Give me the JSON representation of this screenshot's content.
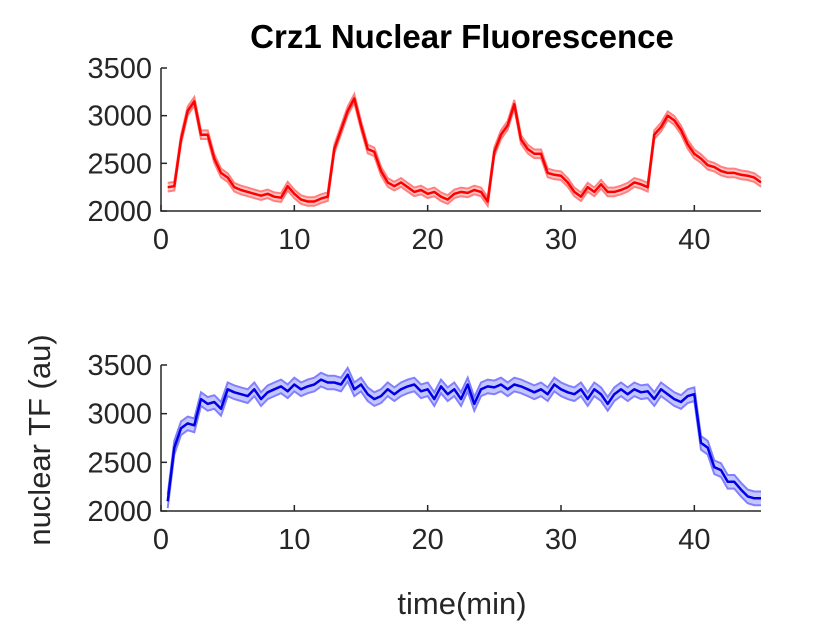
{
  "figure": {
    "title": "Crz1 Nuclear Fluorescence",
    "xlabel": "time(min)",
    "ylabel": "nuclear TF (au)"
  },
  "chart_data": [
    {
      "type": "line",
      "title": "Crz1 Nuclear Fluorescence",
      "xlabel": "",
      "ylabel": "",
      "xlim": [
        0,
        45
      ],
      "ylim": [
        2000,
        3500
      ],
      "xticks": [
        "0",
        "10",
        "20",
        "30",
        "40"
      ],
      "yticks": [
        "2000",
        "2500",
        "3000",
        "3500"
      ],
      "grid": false,
      "color": "#ff0000",
      "band_color": "#ff8080",
      "band_halfwidth": 45,
      "series": [
        {
          "x": [
            0.5,
            1.0,
            1.5,
            2.0,
            2.5,
            3.0,
            3.5,
            4.0,
            4.5,
            5.0,
            5.5,
            6.0,
            6.5,
            7.0,
            7.5,
            8.0,
            8.5,
            9.0,
            9.5,
            10.0,
            10.5,
            11.0,
            11.5,
            12.0,
            12.5,
            13.0,
            13.5,
            14.0,
            14.5,
            15.0,
            15.5,
            16.0,
            16.5,
            17.0,
            17.5,
            18.0,
            18.5,
            19.0,
            19.5,
            20.0,
            20.5,
            21.0,
            21.5,
            22.0,
            22.5,
            23.0,
            23.5,
            24.0,
            24.5,
            25.0,
            25.5,
            26.0,
            26.5,
            27.0,
            27.5,
            28.0,
            28.5,
            29.0,
            29.5,
            30.0,
            30.5,
            31.0,
            31.5,
            32.0,
            32.5,
            33.0,
            33.5,
            34.0,
            34.5,
            35.0,
            35.5,
            36.0,
            36.5,
            37.0,
            37.5,
            38.0,
            38.5,
            39.0,
            39.5,
            40.0,
            40.5,
            41.0,
            41.5,
            42.0,
            42.5,
            43.0,
            43.5,
            44.0,
            44.5,
            45.0
          ],
          "values": [
            2250,
            2260,
            2750,
            3050,
            3150,
            2800,
            2800,
            2550,
            2400,
            2350,
            2250,
            2220,
            2200,
            2180,
            2160,
            2180,
            2150,
            2140,
            2260,
            2180,
            2120,
            2100,
            2100,
            2130,
            2150,
            2650,
            2850,
            3050,
            3180,
            2900,
            2650,
            2620,
            2420,
            2300,
            2260,
            2300,
            2250,
            2200,
            2220,
            2180,
            2200,
            2150,
            2120,
            2180,
            2200,
            2190,
            2220,
            2200,
            2100,
            2620,
            2800,
            2900,
            3120,
            2750,
            2650,
            2600,
            2600,
            2400,
            2380,
            2370,
            2300,
            2200,
            2150,
            2250,
            2200,
            2280,
            2200,
            2200,
            2220,
            2250,
            2300,
            2280,
            2250,
            2800,
            2880,
            3000,
            2950,
            2850,
            2700,
            2600,
            2550,
            2480,
            2460,
            2420,
            2400,
            2400,
            2380,
            2370,
            2350,
            2300
          ]
        }
      ]
    },
    {
      "type": "line",
      "title": "",
      "xlabel": "time(min)",
      "ylabel": "nuclear TF (au)",
      "xlim": [
        0,
        45
      ],
      "ylim": [
        2000,
        3500
      ],
      "xticks": [
        "0",
        "10",
        "20",
        "30",
        "40"
      ],
      "yticks": [
        "2000",
        "2500",
        "3000",
        "3500"
      ],
      "grid": false,
      "color": "#0000e6",
      "band_color": "#8080ff",
      "band_halfwidth": 70,
      "series": [
        {
          "x": [
            0.5,
            1.0,
            1.5,
            2.0,
            2.5,
            3.0,
            3.5,
            4.0,
            4.5,
            5.0,
            5.5,
            6.0,
            6.5,
            7.0,
            7.5,
            8.0,
            8.5,
            9.0,
            9.5,
            10.0,
            10.5,
            11.0,
            11.5,
            12.0,
            12.5,
            13.0,
            13.5,
            14.0,
            14.5,
            15.0,
            15.5,
            16.0,
            16.5,
            17.0,
            17.5,
            18.0,
            18.5,
            19.0,
            19.5,
            20.0,
            20.5,
            21.0,
            21.5,
            22.0,
            22.5,
            23.0,
            23.5,
            24.0,
            24.5,
            25.0,
            25.5,
            26.0,
            26.5,
            27.0,
            27.5,
            28.0,
            28.5,
            29.0,
            29.5,
            30.0,
            30.5,
            31.0,
            31.5,
            32.0,
            32.5,
            33.0,
            33.5,
            34.0,
            34.5,
            35.0,
            35.5,
            36.0,
            36.5,
            37.0,
            37.5,
            38.0,
            38.5,
            39.0,
            39.5,
            40.0,
            40.5,
            41.0,
            41.5,
            42.0,
            42.5,
            43.0,
            43.5,
            44.0,
            44.5,
            45.0
          ],
          "values": [
            2100,
            2650,
            2850,
            2900,
            2880,
            3150,
            3100,
            3120,
            3050,
            3250,
            3220,
            3200,
            3180,
            3250,
            3150,
            3220,
            3250,
            3280,
            3230,
            3300,
            3250,
            3280,
            3300,
            3350,
            3320,
            3320,
            3300,
            3400,
            3250,
            3300,
            3200,
            3150,
            3180,
            3250,
            3200,
            3250,
            3280,
            3300,
            3230,
            3250,
            3150,
            3280,
            3200,
            3250,
            3150,
            3300,
            3100,
            3250,
            3280,
            3270,
            3300,
            3250,
            3300,
            3280,
            3250,
            3220,
            3250,
            3200,
            3300,
            3250,
            3220,
            3200,
            3250,
            3150,
            3250,
            3200,
            3100,
            3200,
            3250,
            3200,
            3250,
            3220,
            3230,
            3150,
            3250,
            3200,
            3150,
            3120,
            3180,
            3200,
            2700,
            2650,
            2450,
            2420,
            2300,
            2300,
            2220,
            2150,
            2130,
            2130
          ]
        }
      ]
    }
  ]
}
